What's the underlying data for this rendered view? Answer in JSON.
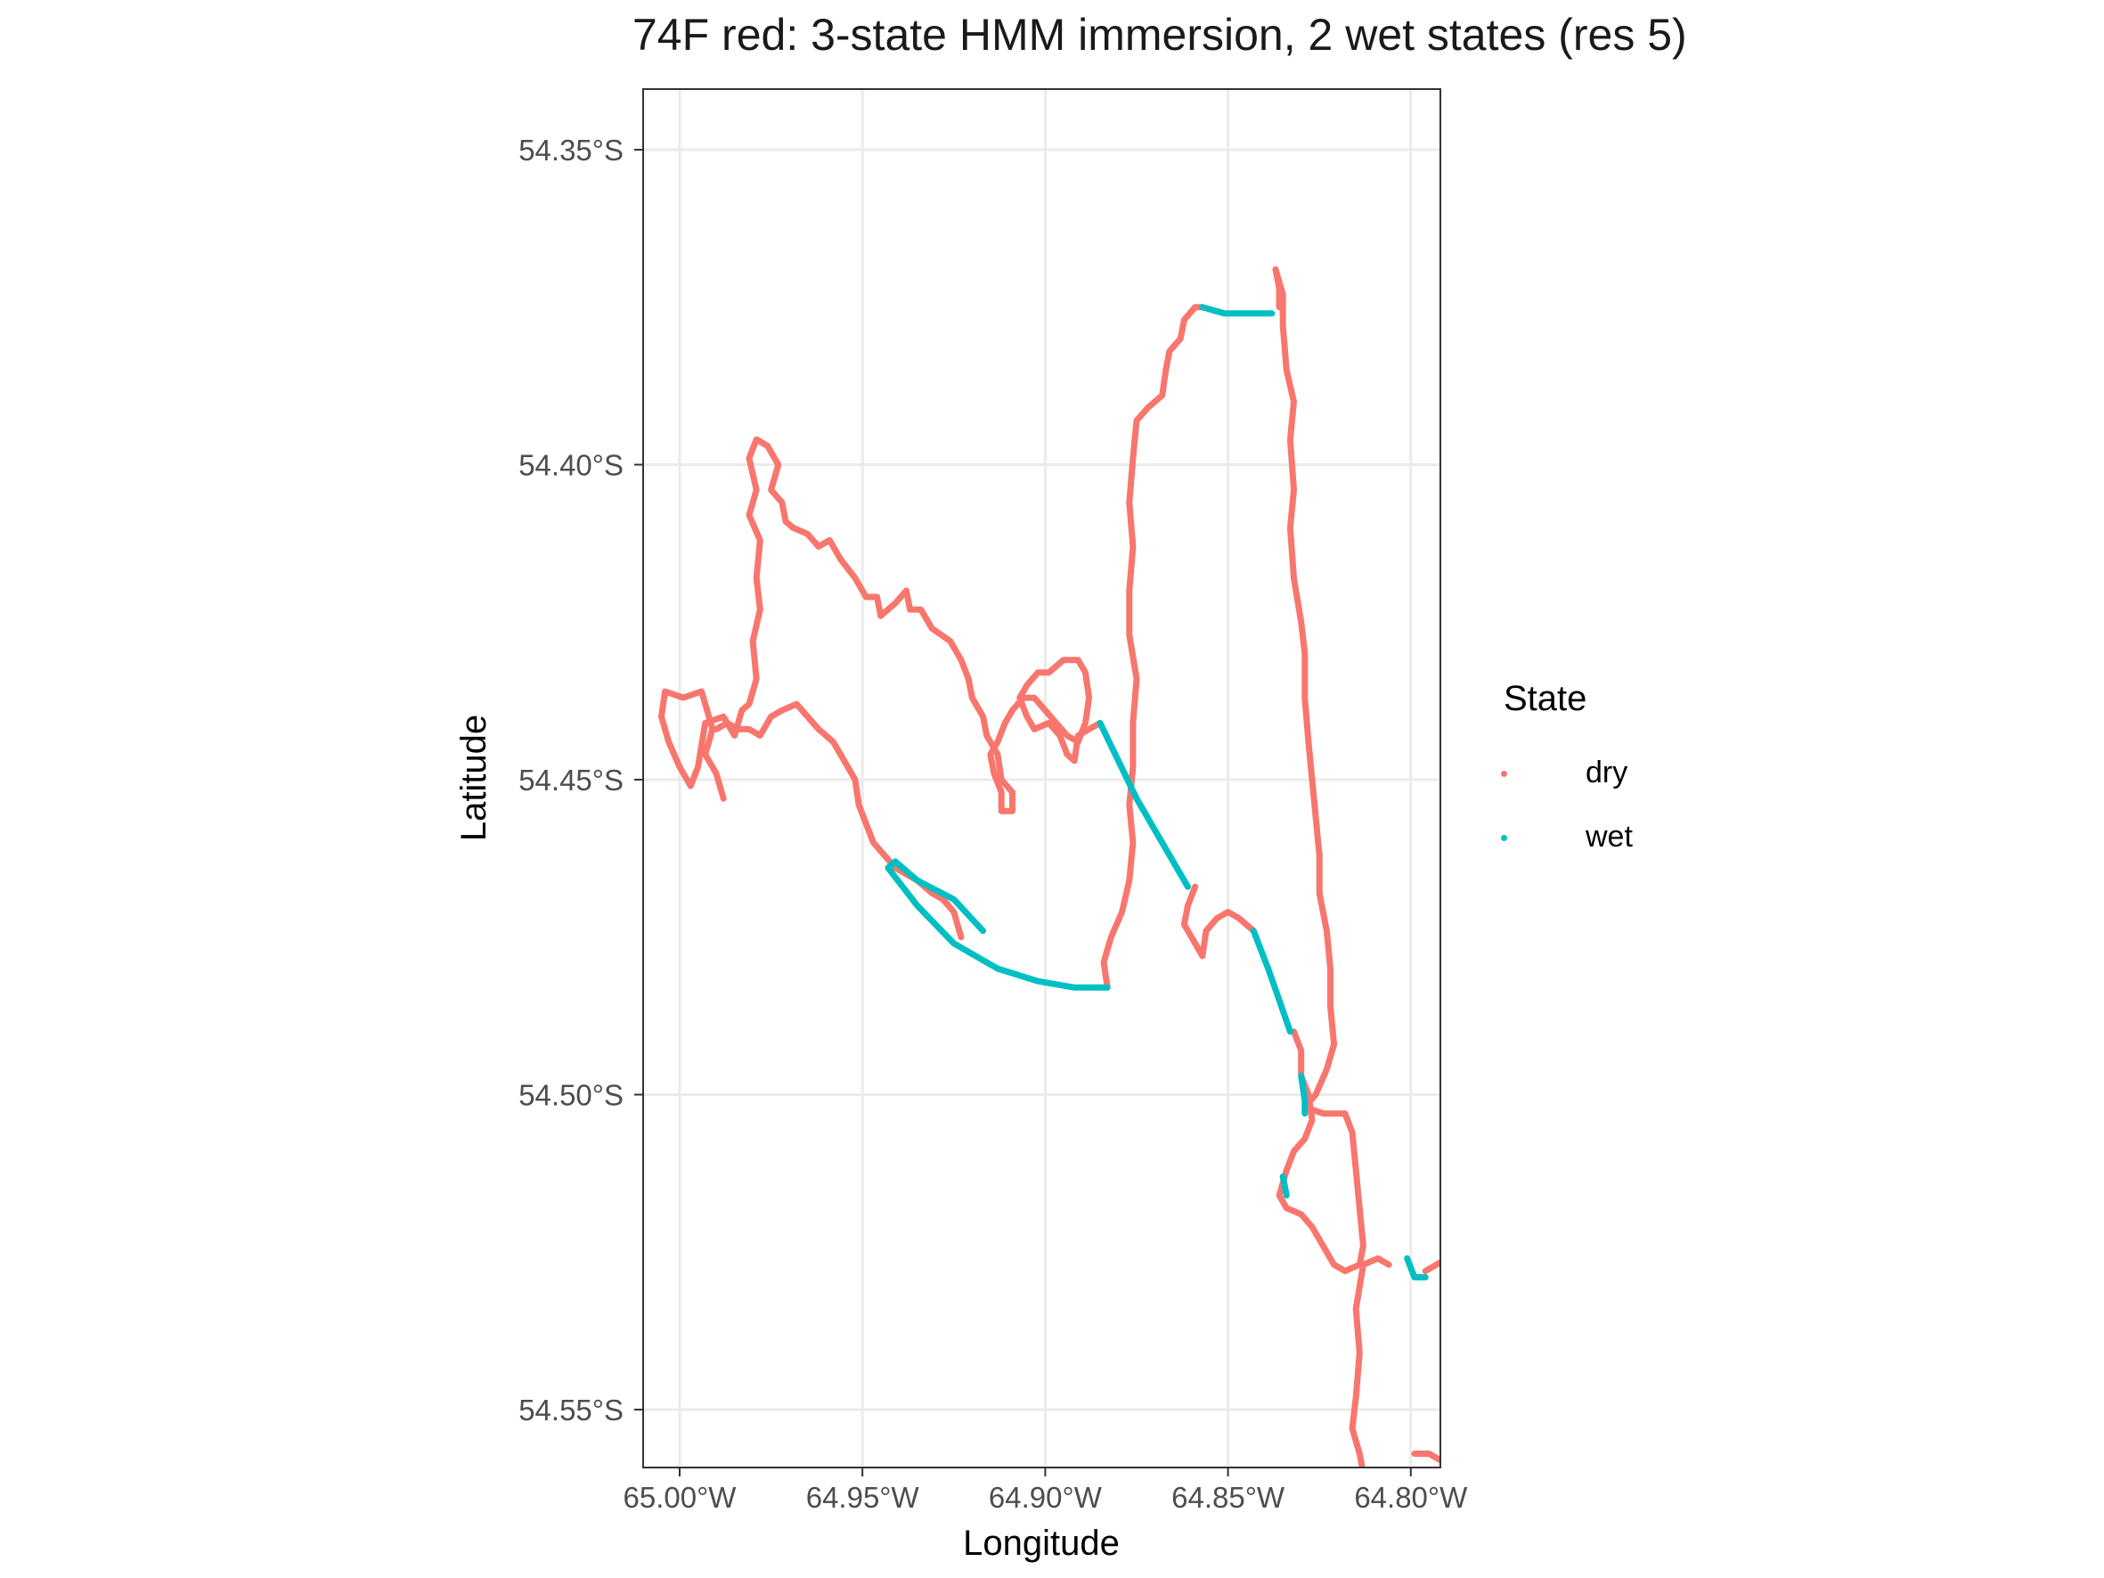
{
  "chart_data": {
    "type": "line",
    "title": "74F red: 3-state HMM immersion, 2 wet states (res 5)",
    "xlabel": "Longitude",
    "ylabel": "Latitude",
    "x_ticks": [
      "65.00°W",
      "64.95°W",
      "64.90°W",
      "64.85°W",
      "64.80°W"
    ],
    "x_tick_values": [
      -65.0,
      -64.95,
      -64.9,
      -64.85,
      -64.8
    ],
    "y_ticks": [
      "54.35°S",
      "54.40°S",
      "54.45°S",
      "54.50°S",
      "54.55°S"
    ],
    "y_tick_values": [
      -54.35,
      -54.4,
      -54.45,
      -54.5,
      -54.55
    ],
    "xlim": [
      -65.01,
      -64.79
    ],
    "ylim": [
      -54.56,
      -54.34
    ],
    "grid": true,
    "legend": {
      "title": "State",
      "position": "right",
      "entries": [
        "dry",
        "wet"
      ]
    },
    "colors": {
      "dry": "#F8766D",
      "wet": "#00BFC4"
    },
    "series": [
      {
        "name": "dry",
        "segments": [
          [
            [
              -64.988,
              -54.453
            ],
            [
              -64.99,
              -54.449
            ],
            [
              -64.993,
              -54.446
            ],
            [
              -64.991,
              -54.442
            ],
            [
              -64.994,
              -54.436
            ],
            [
              -64.999,
              -54.437
            ],
            [
              -65.004,
              -54.436
            ],
            [
              -65.005,
              -54.44
            ],
            [
              -65.003,
              -54.444
            ],
            [
              -65.0,
              -54.448
            ],
            [
              -64.997,
              -54.451
            ],
            [
              -64.995,
              -54.448
            ],
            [
              -64.993,
              -54.441
            ],
            [
              -64.988,
              -54.44
            ],
            [
              -64.985,
              -54.443
            ],
            [
              -64.983,
              -54.439
            ],
            [
              -64.981,
              -54.438
            ],
            [
              -64.979,
              -54.434
            ],
            [
              -64.98,
              -54.428
            ],
            [
              -64.978,
              -54.423
            ],
            [
              -64.979,
              -54.418
            ],
            [
              -64.978,
              -54.412
            ],
            [
              -64.981,
              -54.408
            ],
            [
              -64.979,
              -54.404
            ],
            [
              -64.981,
              -54.399
            ],
            [
              -64.979,
              -54.396
            ],
            [
              -64.976,
              -54.397
            ],
            [
              -64.973,
              -54.4
            ],
            [
              -64.975,
              -54.404
            ],
            [
              -64.972,
              -54.406
            ],
            [
              -64.971,
              -54.409
            ],
            [
              -64.969,
              -54.41
            ],
            [
              -64.965,
              -54.411
            ],
            [
              -64.962,
              -54.413
            ],
            [
              -64.959,
              -54.412
            ],
            [
              -64.956,
              -54.415
            ],
            [
              -64.952,
              -54.418
            ],
            [
              -64.949,
              -54.421
            ],
            [
              -64.946,
              -54.421
            ],
            [
              -64.945,
              -54.424
            ],
            [
              -64.941,
              -54.422
            ],
            [
              -64.938,
              -54.42
            ],
            [
              -64.937,
              -54.423
            ],
            [
              -64.934,
              -54.423
            ],
            [
              -64.931,
              -54.426
            ],
            [
              -64.926,
              -54.428
            ],
            [
              -64.923,
              -54.431
            ],
            [
              -64.921,
              -54.434
            ],
            [
              -64.92,
              -54.437
            ],
            [
              -64.917,
              -54.44
            ],
            [
              -64.916,
              -54.443
            ],
            [
              -64.913,
              -54.446
            ],
            [
              -64.912,
              -54.45
            ],
            [
              -64.909,
              -54.452
            ],
            [
              -64.909,
              -54.455
            ],
            [
              -64.912,
              -54.455
            ],
            [
              -64.912,
              -54.452
            ],
            [
              -64.914,
              -54.449
            ],
            [
              -64.915,
              -54.446
            ],
            [
              -64.913,
              -54.444
            ],
            [
              -64.911,
              -54.441
            ],
            [
              -64.909,
              -54.439
            ],
            [
              -64.906,
              -54.437
            ],
            [
              -64.903,
              -54.437
            ],
            [
              -64.9,
              -54.439
            ],
            [
              -64.897,
              -54.441
            ],
            [
              -64.894,
              -54.443
            ],
            [
              -64.891,
              -54.444
            ],
            [
              -64.889,
              -54.441
            ],
            [
              -64.888,
              -54.437
            ],
            [
              -64.889,
              -54.433
            ],
            [
              -64.891,
              -54.431
            ],
            [
              -64.895,
              -54.431
            ],
            [
              -64.899,
              -54.433
            ],
            [
              -64.902,
              -54.433
            ],
            [
              -64.905,
              -54.435
            ],
            [
              -64.907,
              -54.437
            ],
            [
              -64.905,
              -54.44
            ],
            [
              -64.903,
              -54.442
            ],
            [
              -64.899,
              -54.441
            ],
            [
              -64.896,
              -54.443
            ],
            [
              -64.894,
              -54.446
            ],
            [
              -64.892,
              -54.447
            ],
            [
              -64.891,
              -54.443
            ],
            [
              -64.888,
              -54.442
            ],
            [
              -64.885,
              -54.441
            ]
          ],
          [
            [
              -64.923,
              -54.475
            ],
            [
              -64.925,
              -54.471
            ],
            [
              -64.928,
              -54.469
            ],
            [
              -64.931,
              -54.468
            ],
            [
              -64.935,
              -54.466
            ],
            [
              -64.938,
              -54.465
            ],
            [
              -64.941,
              -54.464
            ],
            [
              -64.944,
              -54.462
            ],
            [
              -64.947,
              -54.46
            ],
            [
              -64.949,
              -54.457
            ],
            [
              -64.951,
              -54.454
            ],
            [
              -64.952,
              -54.45
            ],
            [
              -64.955,
              -54.447
            ],
            [
              -64.958,
              -54.444
            ],
            [
              -64.962,
              -54.442
            ],
            [
              -64.965,
              -54.44
            ],
            [
              -64.968,
              -54.438
            ],
            [
              -64.972,
              -54.439
            ],
            [
              -64.975,
              -54.44
            ],
            [
              -64.978,
              -54.443
            ],
            [
              -64.981,
              -54.442
            ],
            [
              -64.984,
              -54.442
            ],
            [
              -64.987,
              -54.441
            ],
            [
              -64.99,
              -54.442
            ]
          ],
          [
            [
              -64.883,
              -54.483
            ],
            [
              -64.884,
              -54.479
            ],
            [
              -64.882,
              -54.475
            ],
            [
              -64.879,
              -54.471
            ],
            [
              -64.877,
              -54.466
            ],
            [
              -64.876,
              -54.46
            ],
            [
              -64.877,
              -54.454
            ],
            [
              -64.876,
              -54.448
            ],
            [
              -64.876,
              -54.441
            ],
            [
              -64.875,
              -54.434
            ],
            [
              -64.877,
              -54.427
            ],
            [
              -64.877,
              -54.42
            ],
            [
              -64.876,
              -54.413
            ],
            [
              -64.877,
              -54.406
            ],
            [
              -64.876,
              -54.399
            ],
            [
              -64.875,
              -54.393
            ],
            [
              -64.872,
              -54.391
            ],
            [
              -64.868,
              -54.389
            ],
            [
              -64.867,
              -54.385
            ],
            [
              -64.866,
              -54.382
            ],
            [
              -64.863,
              -54.38
            ],
            [
              -64.862,
              -54.377
            ],
            [
              -64.859,
              -54.375
            ],
            [
              -64.857,
              -54.375
            ]
          ],
          [
            [
              -64.836,
              -54.375
            ],
            [
              -64.836,
              -54.372
            ],
            [
              -64.837,
              -54.369
            ],
            [
              -64.835,
              -54.373
            ],
            [
              -64.835,
              -54.378
            ],
            [
              -64.834,
              -54.385
            ],
            [
              -64.832,
              -54.39
            ],
            [
              -64.833,
              -54.396
            ],
            [
              -64.832,
              -54.404
            ],
            [
              -64.833,
              -54.41
            ],
            [
              -64.832,
              -54.418
            ],
            [
              -64.83,
              -54.425
            ],
            [
              -64.829,
              -54.43
            ],
            [
              -64.829,
              -54.437
            ],
            [
              -64.828,
              -54.444
            ],
            [
              -64.827,
              -54.45
            ],
            [
              -64.826,
              -54.456
            ],
            [
              -64.825,
              -54.462
            ],
            [
              -64.825,
              -54.468
            ],
            [
              -64.823,
              -54.474
            ],
            [
              -64.822,
              -54.48
            ],
            [
              -64.822,
              -54.486
            ],
            [
              -64.821,
              -54.492
            ],
            [
              -64.823,
              -54.496
            ],
            [
              -64.826,
              -54.5
            ],
            [
              -64.829,
              -54.502
            ],
            [
              -64.824,
              -54.503
            ],
            [
              -64.818,
              -54.503
            ],
            [
              -64.816,
              -54.506
            ],
            [
              -64.815,
              -54.512
            ],
            [
              -64.814,
              -54.518
            ],
            [
              -64.813,
              -54.524
            ],
            [
              -64.814,
              -54.527
            ],
            [
              -64.818,
              -54.528
            ],
            [
              -64.821,
              -54.527
            ],
            [
              -64.824,
              -54.524
            ],
            [
              -64.827,
              -54.521
            ],
            [
              -64.83,
              -54.519
            ],
            [
              -64.834,
              -54.518
            ],
            [
              -64.836,
              -54.516
            ],
            [
              -64.834,
              -54.512
            ],
            [
              -64.832,
              -54.509
            ],
            [
              -64.829,
              -54.507
            ],
            [
              -64.827,
              -54.504
            ],
            [
              -64.828,
              -54.5
            ],
            [
              -64.83,
              -54.497
            ],
            [
              -64.83,
              -54.493
            ],
            [
              -64.832,
              -54.49
            ]
          ],
          [
            [
              -64.859,
              -54.467
            ],
            [
              -64.861,
              -54.47
            ],
            [
              -64.862,
              -54.473
            ],
            [
              -64.859,
              -54.476
            ],
            [
              -64.857,
              -54.478
            ],
            [
              -64.856,
              -54.474
            ],
            [
              -64.853,
              -54.472
            ],
            [
              -64.85,
              -54.471
            ],
            [
              -64.847,
              -54.472
            ],
            [
              -64.843,
              -54.474
            ]
          ],
          [
            [
              -64.813,
              -54.527
            ],
            [
              -64.815,
              -54.534
            ],
            [
              -64.814,
              -54.541
            ],
            [
              -64.815,
              -54.548
            ],
            [
              -64.816,
              -54.553
            ],
            [
              -64.814,
              -54.557
            ],
            [
              -64.813,
              -54.56
            ]
          ],
          [
            [
              -64.806,
              -54.527
            ],
            [
              -64.809,
              -54.526
            ],
            [
              -64.813,
              -54.527
            ]
          ],
          [
            [
              -64.796,
              -54.528
            ],
            [
              -64.793,
              -54.527
            ],
            [
              -64.79,
              -54.526
            ]
          ],
          [
            [
              -64.799,
              -54.557
            ],
            [
              -64.795,
              -54.557
            ],
            [
              -64.792,
              -54.558
            ]
          ]
        ]
      },
      {
        "name": "wet",
        "segments": [
          [
            [
              -64.885,
              -54.441
            ],
            [
              -64.88,
              -54.447
            ],
            [
              -64.875,
              -54.453
            ],
            [
              -64.87,
              -54.458
            ],
            [
              -64.865,
              -54.463
            ],
            [
              -64.861,
              -54.467
            ]
          ],
          [
            [
              -64.857,
              -54.375
            ],
            [
              -64.851,
              -54.376
            ],
            [
              -64.844,
              -54.376
            ],
            [
              -64.838,
              -54.376
            ]
          ],
          [
            [
              -64.843,
              -54.474
            ],
            [
              -64.839,
              -54.48
            ],
            [
              -64.836,
              -54.485
            ],
            [
              -64.833,
              -54.49
            ]
          ],
          [
            [
              -64.83,
              -54.497
            ],
            [
              -64.829,
              -54.501
            ],
            [
              -64.829,
              -54.503
            ]
          ],
          [
            [
              -64.917,
              -54.474
            ],
            [
              -64.925,
              -54.469
            ],
            [
              -64.935,
              -54.466
            ],
            [
              -64.941,
              -54.463
            ],
            [
              -64.943,
              -54.464
            ],
            [
              -64.935,
              -54.47
            ],
            [
              -64.925,
              -54.476
            ],
            [
              -64.913,
              -54.48
            ],
            [
              -64.902,
              -54.482
            ],
            [
              -64.892,
              -54.483
            ],
            [
              -64.883,
              -54.483
            ]
          ],
          [
            [
              -64.835,
              -54.513
            ],
            [
              -64.834,
              -54.516
            ]
          ],
          [
            [
              -64.801,
              -54.526
            ],
            [
              -64.799,
              -54.529
            ],
            [
              -64.796,
              -54.529
            ]
          ]
        ]
      }
    ]
  }
}
